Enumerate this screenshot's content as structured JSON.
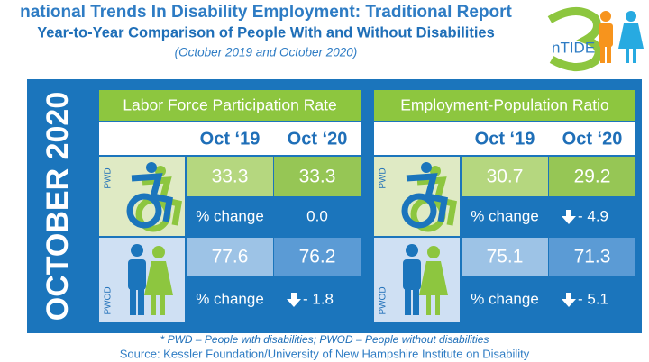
{
  "header": {
    "title": "national Trends In Disability Employment: Traditional Report",
    "subtitle": "Year-to-Year Comparison of People With and Without Disabilities",
    "period": "(October 2019  and October 2020)"
  },
  "logo": {
    "text": "nTIDE"
  },
  "side_label": "OCTOBER 2020",
  "panels": [
    {
      "title": "Labor Force Participation Rate",
      "columns": [
        "Oct ‘19",
        "Oct ‘20"
      ],
      "rows": [
        {
          "group": "PWD",
          "values": [
            "33.3",
            "33.3"
          ],
          "change_label": "% change",
          "change": "0.0"
        },
        {
          "group": "PWOD",
          "values": [
            "77.6",
            "76.2"
          ],
          "change_label": "% change",
          "change": "- 1.8"
        }
      ]
    },
    {
      "title": "Employment-Population Ratio",
      "columns": [
        "Oct ‘19",
        "Oct ‘20"
      ],
      "rows": [
        {
          "group": "PWD",
          "values": [
            "30.7",
            "29.2"
          ],
          "change_label": "% change",
          "change": "- 4.9"
        },
        {
          "group": "PWOD",
          "values": [
            "75.1",
            "71.3"
          ],
          "change_label": "% change",
          "change": "- 5.1"
        }
      ]
    }
  ],
  "footnote": "* PWD – People with disabilities;  PWOD – People without disabilities",
  "source": "Source: Kessler Foundation/University of New Hampshire Institute on Disability"
}
